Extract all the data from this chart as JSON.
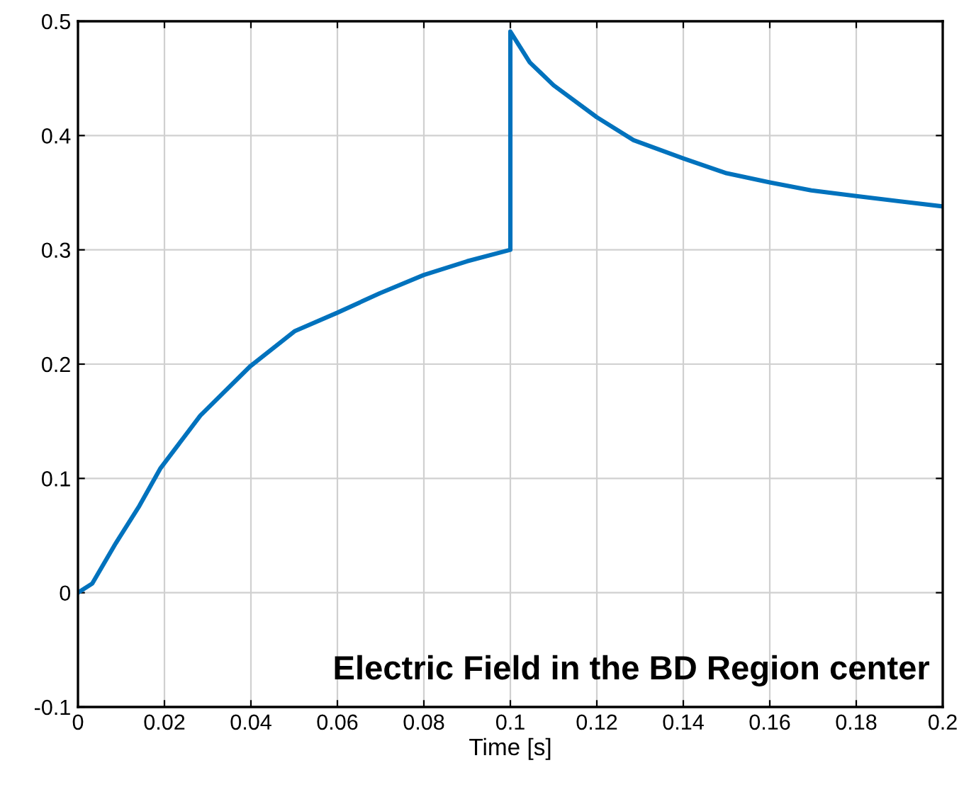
{
  "chart_data": {
    "type": "line",
    "xlabel": "Time [s]",
    "annotations": [
      "Electric Field in the BD Region center"
    ],
    "x": [
      0,
      0.0033,
      0.0087,
      0.0142,
      0.0191,
      0.0283,
      0.0398,
      0.0502,
      0.06,
      0.0698,
      0.08,
      0.09,
      0.1,
      0.1,
      0.1045,
      0.11,
      0.12,
      0.1285,
      0.14,
      0.15,
      0.16,
      0.1696,
      0.18,
      0.2
    ],
    "series": [
      {
        "color": "#0072bd",
        "values": [
          0,
          0.008,
          0.043,
          0.076,
          0.109,
          0.155,
          0.198,
          0.229,
          0.245,
          0.262,
          0.278,
          0.29,
          0.3,
          0.491,
          0.464,
          0.444,
          0.416,
          0.396,
          0.38,
          0.367,
          0.359,
          0.352,
          0.347,
          0.338
        ]
      }
    ],
    "xlim": [
      0,
      0.2
    ],
    "ylim": [
      -0.1,
      0.5
    ],
    "xticks": [
      0,
      0.02,
      0.04,
      0.06,
      0.08,
      0.1,
      0.12,
      0.14,
      0.16,
      0.18,
      0.2
    ],
    "yticks": [
      {
        "value": -0.1,
        "label": "-0.1"
      },
      0,
      0.1,
      0.2,
      0.3,
      0.4,
      0.5
    ],
    "grid": true,
    "line_style": "solid",
    "marker": "none"
  }
}
